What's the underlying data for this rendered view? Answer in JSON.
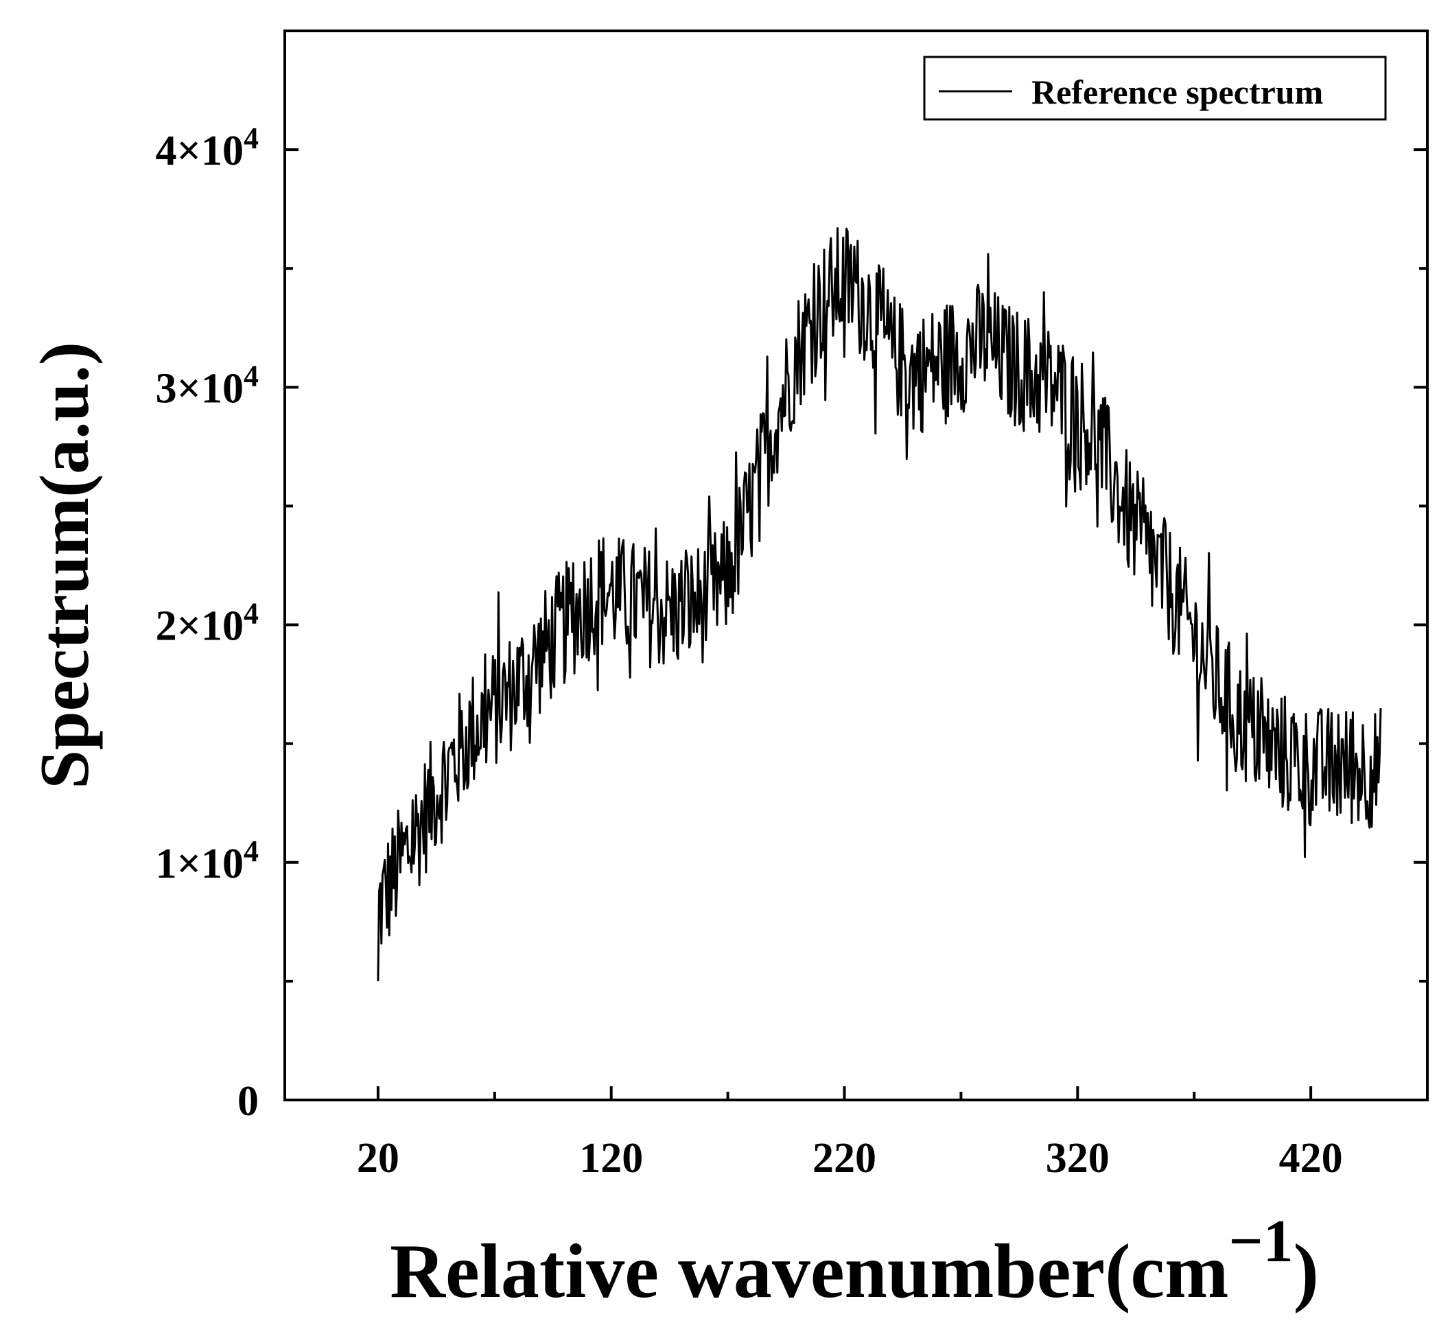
{
  "chart_data": {
    "type": "line",
    "title": "",
    "xlabel": "Relative wavenumber(cm",
    "xlabel_superscript": "−1",
    "xlabel_close": ")",
    "ylabel": "Spectrum(a.u.)",
    "xlim": [
      -20,
      470
    ],
    "ylim": [
      0,
      45000
    ],
    "x_ticks": [
      20,
      120,
      220,
      320,
      420
    ],
    "x_tick_labels": [
      "20",
      "120",
      "220",
      "320",
      "420"
    ],
    "x_minor_ticks": [
      70,
      170,
      270,
      370
    ],
    "y_ticks": [
      0,
      10000,
      20000,
      30000,
      40000
    ],
    "y_tick_labels": [
      {
        "base": "0",
        "exp": ""
      },
      {
        "base": "1×10",
        "exp": "4"
      },
      {
        "base": "2×10",
        "exp": "4"
      },
      {
        "base": "3×10",
        "exp": "4"
      },
      {
        "base": "4×10",
        "exp": "4"
      }
    ],
    "y_minor_ticks": [
      5000,
      15000,
      25000,
      35000
    ],
    "legend": {
      "position": "top-right",
      "entries": [
        "Reference spectrum"
      ]
    },
    "series": [
      {
        "name": "Reference spectrum",
        "color": "#000000",
        "trend": {
          "x": [
            20,
            30,
            45,
            60,
            80,
            100,
            115,
            130,
            145,
            160,
            170,
            180,
            190,
            200,
            210,
            220,
            230,
            240,
            250,
            260,
            270,
            280,
            290,
            300,
            310,
            320,
            330,
            340,
            350,
            360,
            370,
            380,
            390,
            400,
            410,
            420,
            430,
            450
          ],
          "y": [
            8000,
            10000,
            13000,
            15500,
            17500,
            20000,
            21500,
            21000,
            20500,
            21000,
            22000,
            25000,
            28500,
            31500,
            33500,
            34500,
            33500,
            31500,
            30500,
            31000,
            31500,
            32000,
            31000,
            30500,
            30000,
            29000,
            27500,
            25000,
            23000,
            21500,
            19500,
            17500,
            16000,
            15000,
            14500,
            14000,
            14000,
            14000
          ]
        },
        "noise_amplitude": 2600,
        "points": 900
      }
    ]
  }
}
